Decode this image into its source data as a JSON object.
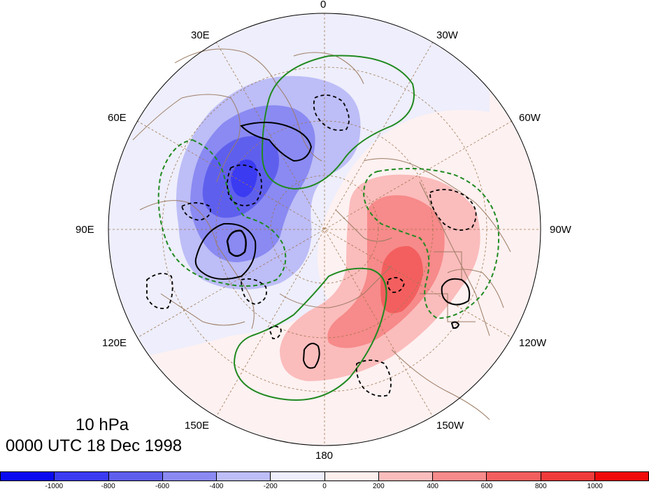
{
  "title": {
    "level": "10 hPa",
    "datetime": "0000 UTC 18 Dec 1998"
  },
  "longitude_labels": [
    {
      "id": "0",
      "text": "0"
    },
    {
      "id": "30w",
      "text": "30W"
    },
    {
      "id": "60w",
      "text": "60W"
    },
    {
      "id": "90w",
      "text": "90W"
    },
    {
      "id": "120w",
      "text": "120W"
    },
    {
      "id": "150w",
      "text": "150W"
    },
    {
      "id": "180",
      "text": "180"
    },
    {
      "id": "150e",
      "text": "150E"
    },
    {
      "id": "120e",
      "text": "120E"
    },
    {
      "id": "90e",
      "text": "90E"
    },
    {
      "id": "60e",
      "text": "60E"
    },
    {
      "id": "30e",
      "text": "30E"
    }
  ],
  "colorbar": {
    "colors": [
      "#0a0af0",
      "#3b3bf2",
      "#5f5fee",
      "#8a8af2",
      "#bdbdf7",
      "#eeeefc",
      "#fdeeee",
      "#fbbcbc",
      "#f78a8a",
      "#f35f5f",
      "#f03b3b",
      "#f00a0a"
    ],
    "tick_labels": [
      "-1000",
      "-800",
      "-600",
      "-400",
      "-200",
      "0",
      "200",
      "400",
      "600",
      "800",
      "1000"
    ]
  },
  "colors": {
    "coastline": "#9c7c64",
    "gridline": "#a07850",
    "green_contour": "#218a21",
    "black_contour": "#000000"
  },
  "map": {
    "projection": "polar-stereographic",
    "hemisphere": "north",
    "shading": "anomaly field (blue negative / red positive)",
    "contours": [
      "solid-green",
      "dashed-green",
      "solid-black",
      "dashed-black"
    ]
  }
}
